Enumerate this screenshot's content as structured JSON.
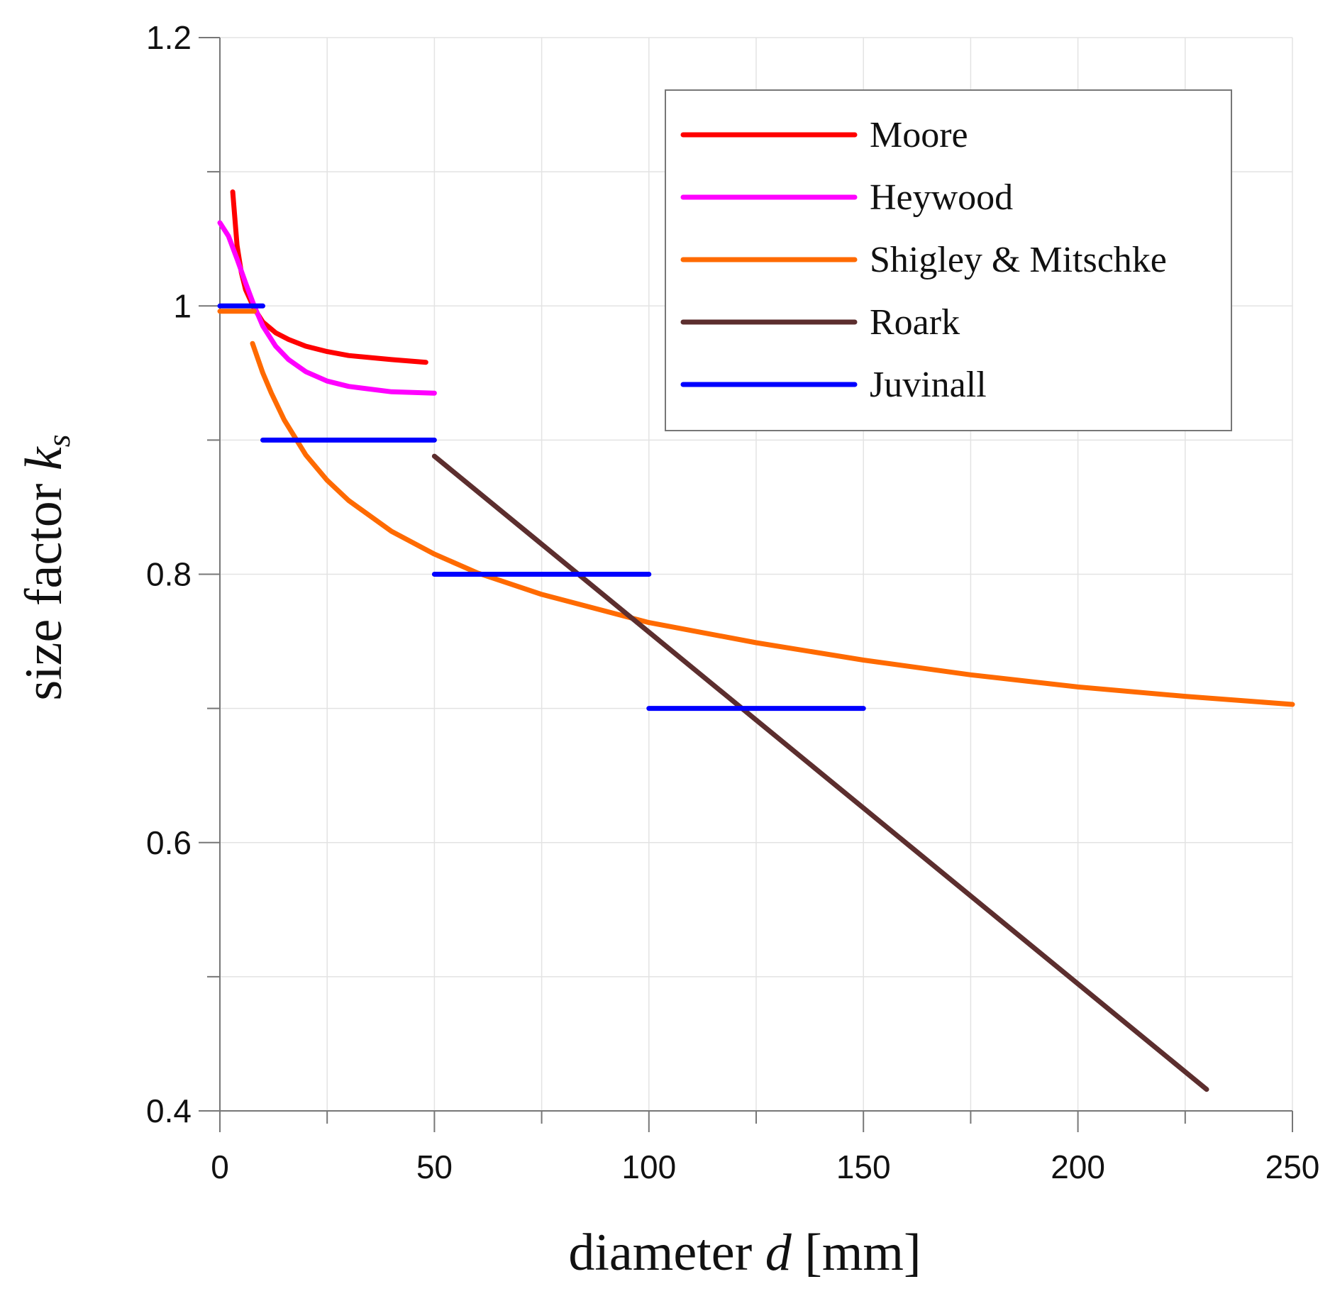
{
  "chart_data": {
    "type": "line",
    "title": "",
    "xlabel_main": "diameter",
    "xlabel_var": "d",
    "xlabel_unit": "[mm]",
    "ylabel_main": "size factor",
    "ylabel_var": "k",
    "ylabel_sub": "s",
    "xlim": [
      0,
      250
    ],
    "ylim": [
      0.4,
      1.2
    ],
    "x_ticks": [
      0,
      50,
      100,
      150,
      200,
      250
    ],
    "x_tick_labels": [
      "0",
      "50",
      "100",
      "150",
      "200",
      "250"
    ],
    "x_minor_ticks": [
      25,
      75,
      125,
      175,
      225
    ],
    "y_ticks": [
      0.4,
      0.6,
      0.8,
      1.0,
      1.2
    ],
    "y_tick_labels": [
      "0.4",
      "0.6",
      "0.8",
      "1",
      "1.2"
    ],
    "y_minor_ticks": [
      0.5,
      0.7,
      0.9,
      1.1
    ],
    "grid": true,
    "legend_position": "top-right",
    "series": [
      {
        "name": "Moore",
        "color": "#ff0000",
        "segments": [
          [
            [
              3,
              1.085
            ],
            [
              4,
              1.045
            ],
            [
              5,
              1.025
            ],
            [
              6,
              1.012
            ],
            [
              8,
              0.998
            ],
            [
              10,
              0.988
            ],
            [
              13,
              0.98
            ],
            [
              16,
              0.975
            ],
            [
              20,
              0.97
            ],
            [
              25,
              0.966
            ],
            [
              30,
              0.963
            ],
            [
              40,
              0.96
            ],
            [
              48,
              0.958
            ]
          ]
        ]
      },
      {
        "name": "Heywood",
        "color": "#ff00ff",
        "segments": [
          [
            [
              0,
              1.062
            ],
            [
              2,
              1.052
            ],
            [
              4,
              1.035
            ],
            [
              6,
              1.017
            ],
            [
              8,
              1.0
            ],
            [
              10,
              0.985
            ],
            [
              13,
              0.97
            ],
            [
              16,
              0.96
            ],
            [
              20,
              0.951
            ],
            [
              25,
              0.944
            ],
            [
              30,
              0.94
            ],
            [
              40,
              0.936
            ],
            [
              50,
              0.935
            ]
          ]
        ]
      },
      {
        "name": "Shigley & Mitschke",
        "color": "#ff6a00",
        "segments": [
          [
            [
              0,
              0.996
            ],
            [
              8,
              0.996
            ]
          ],
          [
            [
              7.6,
              0.972
            ],
            [
              10,
              0.95
            ],
            [
              12,
              0.935
            ],
            [
              15,
              0.915
            ],
            [
              20,
              0.889
            ],
            [
              25,
              0.87
            ],
            [
              30,
              0.855
            ],
            [
              40,
              0.832
            ],
            [
              50,
              0.815
            ],
            [
              60,
              0.801
            ],
            [
              75,
              0.785
            ],
            [
              100,
              0.764
            ],
            [
              125,
              0.749
            ],
            [
              150,
              0.736
            ],
            [
              175,
              0.725
            ],
            [
              200,
              0.716
            ],
            [
              225,
              0.709
            ],
            [
              250,
              0.703
            ]
          ]
        ]
      },
      {
        "name": "Roark",
        "color": "#5c2e2e",
        "segments": [
          [
            [
              50,
              0.888
            ],
            [
              230,
              0.416
            ]
          ]
        ]
      },
      {
        "name": "Juvinall",
        "color": "#0000ff",
        "segments": [
          [
            [
              0,
              1.0
            ],
            [
              10,
              1.0
            ]
          ],
          [
            [
              10,
              0.9
            ],
            [
              50,
              0.9
            ]
          ],
          [
            [
              50,
              0.8
            ],
            [
              100,
              0.8
            ]
          ],
          [
            [
              100,
              0.7
            ],
            [
              150,
              0.7
            ]
          ]
        ]
      }
    ]
  }
}
